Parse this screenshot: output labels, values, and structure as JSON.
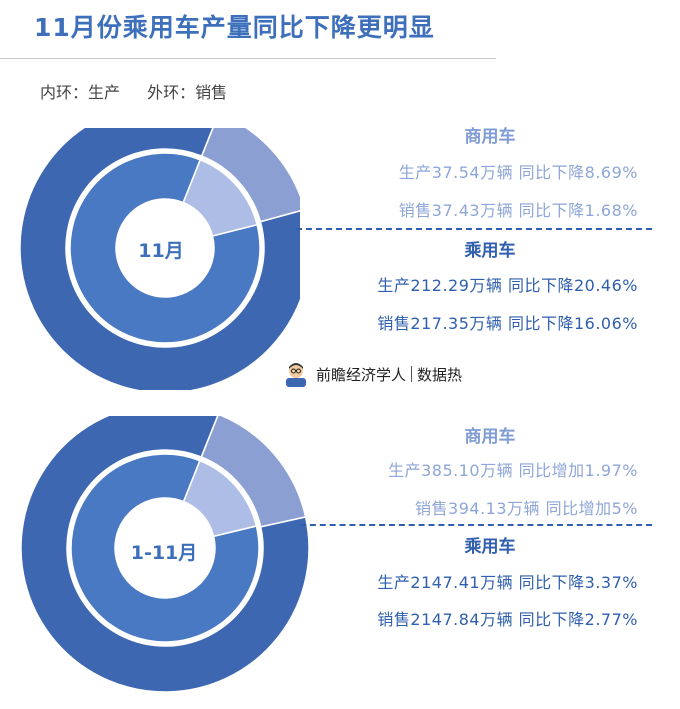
{
  "title": "11月份乘用车产量同比下降更明显",
  "legend_note": {
    "inner": "内环：生产",
    "outer": "外环：销售"
  },
  "brand": {
    "name": "前瞻经济学人",
    "sub": "数据热"
  },
  "colors": {
    "outer_main": "#3e67b1",
    "outer_minor": "#8b9fd3",
    "inner_main": "#4a79c3",
    "inner_minor": "#aebde6",
    "accent": "#2f5fae"
  },
  "chart_data": [
    {
      "type": "pie",
      "center_label": "11月",
      "inner_ring": {
        "name": "生产",
        "slices": [
          {
            "label": "商用车",
            "value": 37.54
          },
          {
            "label": "乘用车",
            "value": 212.29
          }
        ]
      },
      "outer_ring": {
        "name": "销售",
        "slices": [
          {
            "label": "商用车",
            "value": 37.43
          },
          {
            "label": "乘用车",
            "value": 217.35
          }
        ]
      },
      "annotations": {
        "commercial": {
          "title": "商用车",
          "production": "生产37.54万辆  同比下降8.69%",
          "sales": "销售37.43万辆  同比下降1.68%"
        },
        "passenger": {
          "title": "乘用车",
          "production": "生产212.29万辆  同比下降20.46%",
          "sales": "销售217.35万辆  同比下降16.06%"
        }
      }
    },
    {
      "type": "pie",
      "center_label": "1-11月",
      "inner_ring": {
        "name": "生产",
        "slices": [
          {
            "label": "商用车",
            "value": 385.1
          },
          {
            "label": "乘用车",
            "value": 2147.41
          }
        ]
      },
      "outer_ring": {
        "name": "销售",
        "slices": [
          {
            "label": "商用车",
            "value": 394.13
          },
          {
            "label": "乘用车",
            "value": 2147.84
          }
        ]
      },
      "annotations": {
        "commercial": {
          "title": "商用车",
          "production": "生产385.10万辆  同比增加1.97%",
          "sales": "销售394.13万辆  同比增加5%"
        },
        "passenger": {
          "title": "乘用车",
          "production": "生产2147.41万辆  同比下降3.37%",
          "sales": "销售2147.84万辆  同比下降2.77%"
        }
      }
    }
  ]
}
